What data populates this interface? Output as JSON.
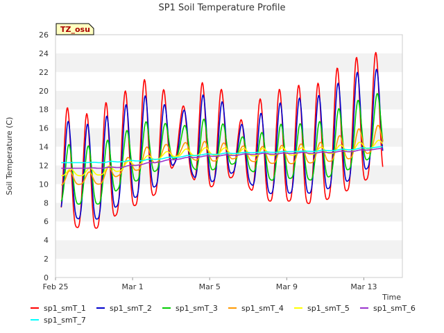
{
  "chart_data": {
    "type": "line",
    "title": "SP1 Soil Temperature Profile",
    "xlabel": "Time",
    "ylabel": "Soil Temperature (C)",
    "ylim": [
      0,
      26
    ],
    "y_ticks": [
      0,
      2,
      4,
      6,
      8,
      10,
      12,
      14,
      16,
      18,
      20,
      22,
      24,
      26
    ],
    "x_ticks": [
      {
        "day": 0,
        "label": "Feb 25"
      },
      {
        "day": 4,
        "label": "Mar 1"
      },
      {
        "day": 8,
        "label": "Mar 5"
      },
      {
        "day": 12,
        "label": "Mar 9"
      },
      {
        "day": 16,
        "label": "Mar 13"
      }
    ],
    "x_range_days": [
      0,
      18
    ],
    "grid": "horizontal alternating bands",
    "legend_placement": "bottom",
    "annotation": "TZ_osu",
    "series": [
      {
        "name": "sp1_smT_1",
        "color": "#ff0000",
        "daily_min": [
          5.8,
          5.1,
          5.4,
          7.4,
          7.9,
          9.4,
          13.5,
          9.0,
          10.2,
          11.0,
          8.5,
          8.0,
          8.3,
          7.7,
          8.8,
          9.6,
          11.0
        ],
        "daily_max": [
          18.3,
          17.4,
          18.6,
          19.8,
          21.3,
          20.4,
          18.0,
          20.9,
          20.6,
          16.6,
          19.0,
          20.1,
          20.6,
          20.6,
          22.3,
          23.5,
          24.1
        ]
      },
      {
        "name": "sp1_smT_2",
        "color": "#0000cc",
        "daily_min": [
          6.9,
          6.0,
          6.4,
          8.2,
          8.8,
          10.2,
          13.2,
          9.7,
          10.6,
          11.5,
          9.2,
          8.9,
          9.1,
          9.0,
          9.8,
          10.6,
          12.2
        ],
        "daily_max": [
          16.8,
          16.3,
          17.1,
          18.3,
          19.6,
          18.7,
          17.6,
          19.6,
          19.3,
          16.2,
          17.4,
          18.6,
          19.2,
          19.3,
          20.6,
          21.9,
          22.3
        ]
      },
      {
        "name": "sp1_smT_3",
        "color": "#00cc00",
        "daily_min": [
          8.0,
          7.8,
          7.9,
          10.0,
          10.5,
          11.8,
          13.2,
          11.0,
          11.8,
          12.3,
          11.0,
          10.2,
          10.8,
          10.3,
          11.0,
          11.8,
          13.0
        ],
        "daily_max": [
          14.3,
          14.0,
          14.5,
          15.5,
          16.7,
          16.6,
          16.1,
          17.0,
          16.8,
          15.0,
          15.3,
          16.4,
          16.5,
          16.4,
          17.9,
          18.8,
          19.7
        ]
      },
      {
        "name": "sp1_smT_4",
        "color": "#ff9900",
        "daily_min": [
          9.9,
          10.0,
          10.0,
          11.2,
          11.6,
          12.6,
          13.1,
          12.4,
          12.5,
          12.8,
          12.3,
          12.2,
          12.2,
          12.3,
          12.5,
          12.8,
          13.5
        ],
        "daily_max": [
          11.5,
          11.2,
          11.6,
          12.5,
          13.9,
          14.2,
          14.4,
          14.6,
          14.5,
          14.1,
          14.0,
          14.1,
          14.3,
          14.3,
          15.0,
          15.8,
          16.3
        ]
      },
      {
        "name": "sp1_smT_5",
        "color": "#ffff00",
        "daily_min": [
          10.9,
          10.9,
          11.0,
          11.5,
          12.2,
          12.8,
          13.0,
          13.1,
          13.1,
          13.1,
          13.0,
          13.1,
          13.1,
          13.2,
          13.3,
          13.5,
          13.9
        ],
        "daily_max": [
          11.6,
          11.7,
          11.8,
          12.3,
          12.9,
          13.4,
          13.7,
          13.9,
          13.9,
          13.8,
          13.8,
          13.9,
          13.9,
          13.9,
          14.1,
          14.4,
          14.7
        ]
      },
      {
        "name": "sp1_smT_6",
        "color": "#9933cc",
        "daily_min": [
          11.7,
          11.7,
          11.7,
          11.8,
          12.1,
          12.4,
          12.7,
          12.9,
          13.0,
          13.1,
          13.2,
          13.2,
          13.3,
          13.3,
          13.4,
          13.5,
          13.7
        ],
        "daily_max": [
          11.7,
          11.7,
          11.8,
          11.9,
          12.2,
          12.5,
          12.8,
          13.0,
          13.1,
          13.2,
          13.3,
          13.3,
          13.4,
          13.4,
          13.5,
          13.6,
          13.8
        ]
      },
      {
        "name": "sp1_smT_7",
        "color": "#00ffff",
        "daily_min": [
          12.3,
          12.3,
          12.3,
          12.4,
          12.5,
          12.7,
          12.9,
          13.1,
          13.2,
          13.3,
          13.4,
          13.4,
          13.5,
          13.5,
          13.6,
          13.7,
          13.9
        ],
        "daily_max": [
          12.3,
          12.3,
          12.4,
          12.5,
          12.6,
          12.8,
          13.0,
          13.2,
          13.3,
          13.4,
          13.4,
          13.5,
          13.5,
          13.6,
          13.7,
          13.8,
          14.0
        ]
      }
    ]
  }
}
